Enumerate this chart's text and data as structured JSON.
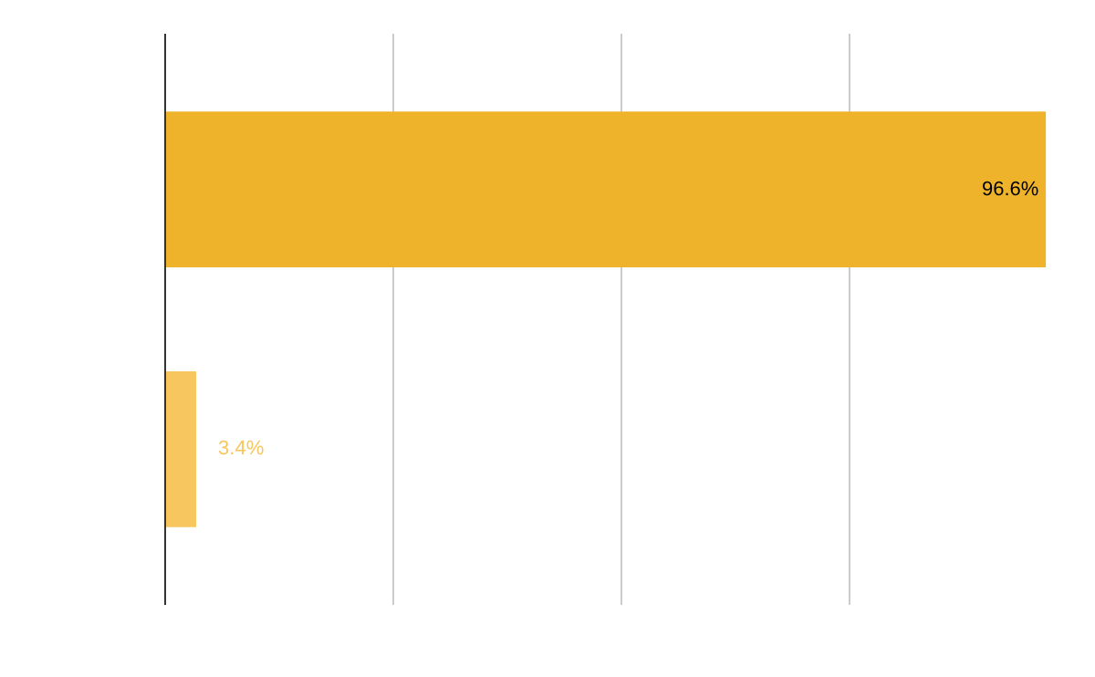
{
  "chart_data": {
    "type": "bar",
    "orientation": "horizontal",
    "categories": [
      null,
      null
    ],
    "values": [
      96.6,
      3.4
    ],
    "colors": [
      "#eeb32b",
      "#f7c65e"
    ],
    "value_labels": [
      "96.6%",
      "3.4%"
    ],
    "grid": "x"
  }
}
